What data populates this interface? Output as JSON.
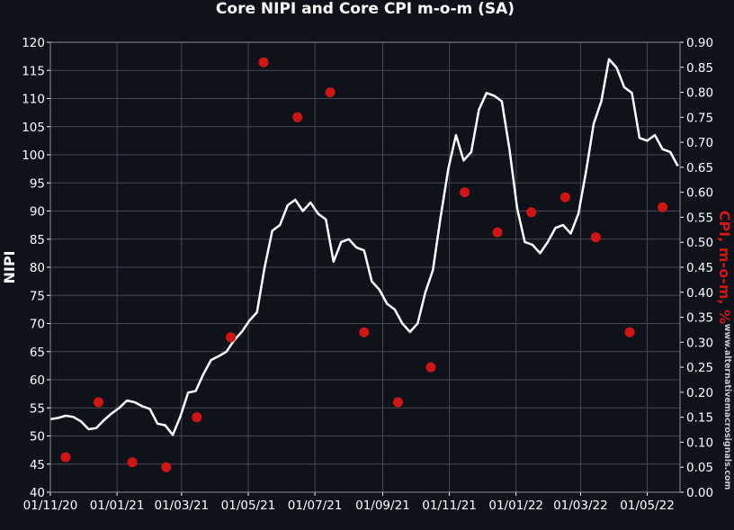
{
  "chart_data": {
    "type": "line",
    "title": "Core NIPI and Core CPI m-o-m (SA)",
    "ylabel": "NIPI",
    "y2label": "CPI, m-o-m, %",
    "watermark": "www.alternativemacrosignals.com",
    "xlim": [
      "2020-11-01",
      "2022-05-31"
    ],
    "ylim": [
      40,
      120
    ],
    "y2lim": [
      0,
      0.9
    ],
    "grid": true,
    "x_tick_labels": [
      "01/11/20",
      "01/01/21",
      "01/03/21",
      "01/05/21",
      "01/07/21",
      "01/09/21",
      "01/11/21",
      "01/01/22",
      "01/03/22",
      "01/05/22"
    ],
    "x_tick_dates": [
      "2020-11-01",
      "2021-01-01",
      "2021-03-01",
      "2021-05-01",
      "2021-07-01",
      "2021-09-01",
      "2021-11-01",
      "2022-01-01",
      "2022-03-01",
      "2022-05-01"
    ],
    "y_ticks": [
      40,
      45,
      50,
      55,
      60,
      65,
      70,
      75,
      80,
      85,
      90,
      95,
      100,
      105,
      110,
      115,
      120
    ],
    "y2_ticks": [
      "0.00",
      "0.05",
      "0.10",
      "0.15",
      "0.20",
      "0.25",
      "0.30",
      "0.35",
      "0.40",
      "0.45",
      "0.50",
      "0.55",
      "0.60",
      "0.65",
      "0.70",
      "0.75",
      "0.80",
      "0.85",
      "0.90"
    ],
    "series": [
      {
        "name": "Core NIPI",
        "axis": "left",
        "color": "#ffffff",
        "x": [
          "2020-11-01",
          "2020-11-08",
          "2020-11-15",
          "2020-11-22",
          "2020-11-29",
          "2020-12-06",
          "2020-12-13",
          "2020-12-20",
          "2020-12-27",
          "2021-01-03",
          "2021-01-10",
          "2021-01-17",
          "2021-01-24",
          "2021-01-31",
          "2021-02-07",
          "2021-02-14",
          "2021-02-21",
          "2021-02-28",
          "2021-03-07",
          "2021-03-14",
          "2021-03-21",
          "2021-03-28",
          "2021-04-04",
          "2021-04-11",
          "2021-04-18",
          "2021-04-25",
          "2021-05-02",
          "2021-05-09",
          "2021-05-16",
          "2021-05-23",
          "2021-05-30",
          "2021-06-06",
          "2021-06-13",
          "2021-06-20",
          "2021-06-27",
          "2021-07-04",
          "2021-07-11",
          "2021-07-18",
          "2021-07-25",
          "2021-08-01",
          "2021-08-08",
          "2021-08-15",
          "2021-08-22",
          "2021-08-29",
          "2021-09-05",
          "2021-09-12",
          "2021-09-19",
          "2021-09-26",
          "2021-10-03",
          "2021-10-10",
          "2021-10-17",
          "2021-10-24",
          "2021-10-31",
          "2021-11-07",
          "2021-11-14",
          "2021-11-21",
          "2021-11-28",
          "2021-12-05",
          "2021-12-12",
          "2021-12-19",
          "2021-12-26",
          "2022-01-02",
          "2022-01-09",
          "2022-01-16",
          "2022-01-23",
          "2022-01-30",
          "2022-02-06",
          "2022-02-13",
          "2022-02-20",
          "2022-02-27",
          "2022-03-06",
          "2022-03-13",
          "2022-03-20",
          "2022-03-27",
          "2022-04-03",
          "2022-04-10",
          "2022-04-17",
          "2022-04-24",
          "2022-05-01",
          "2022-05-08",
          "2022-05-15",
          "2022-05-22",
          "2022-05-29"
        ],
        "values": [
          53.0,
          53.2,
          53.6,
          53.4,
          52.6,
          51.2,
          51.4,
          52.8,
          54.0,
          55.0,
          56.3,
          56.0,
          55.3,
          54.8,
          52.2,
          51.9,
          50.2,
          53.5,
          57.7,
          58.0,
          61.0,
          63.5,
          64.2,
          65.0,
          67.0,
          68.5,
          70.5,
          72.0,
          80.0,
          86.5,
          87.5,
          91.0,
          92.0,
          90.0,
          91.5,
          89.5,
          88.5,
          81.0,
          84.5,
          85.0,
          83.5,
          83.0,
          77.5,
          76.0,
          73.5,
          72.5,
          70.0,
          68.5,
          70.0,
          75.5,
          79.5,
          89.0,
          97.5,
          103.5,
          99.0,
          100.5,
          108.0,
          111.0,
          110.5,
          109.5,
          101.0,
          90.5,
          84.5,
          84.0,
          82.5,
          84.5,
          87.0,
          87.5,
          86.0,
          89.5,
          97.0,
          105.5,
          109.5,
          117.0,
          115.5,
          112.0,
          111.0,
          103.0,
          102.5,
          103.5,
          101.0,
          100.5,
          98.0
        ]
      },
      {
        "name": "Core CPI m-o-m",
        "axis": "right",
        "color": "#d01515",
        "x": [
          "2020-11-15",
          "2020-12-15",
          "2021-01-15",
          "2021-02-15",
          "2021-03-15",
          "2021-04-15",
          "2021-05-15",
          "2021-06-15",
          "2021-07-15",
          "2021-08-15",
          "2021-09-15",
          "2021-10-15",
          "2021-11-15",
          "2021-12-15",
          "2022-01-15",
          "2022-02-15",
          "2022-03-15",
          "2022-04-15",
          "2022-05-15"
        ],
        "values": [
          0.07,
          0.18,
          0.06,
          0.05,
          0.15,
          0.31,
          0.86,
          0.75,
          0.8,
          0.32,
          0.18,
          0.25,
          0.6,
          0.52,
          0.56,
          0.59,
          0.51,
          0.32,
          0.57
        ]
      }
    ]
  }
}
